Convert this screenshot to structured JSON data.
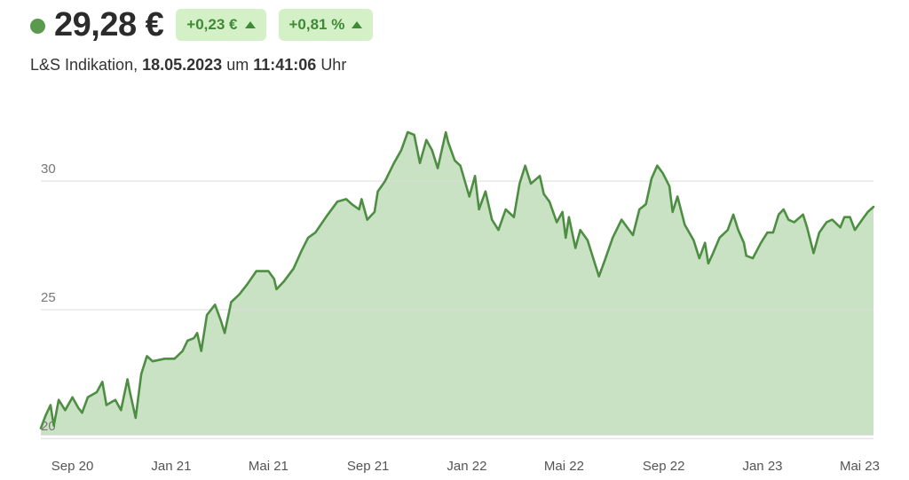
{
  "quote": {
    "price": "29,28 €",
    "change_abs": "+0,23 €",
    "change_pct": "+0,81 %",
    "source": "L&S Indikation,",
    "date": "18.05.2023",
    "um": "um",
    "time": "11:41:06",
    "unit": "Uhr",
    "up_color": "#3f8a35"
  },
  "chart_data": {
    "type": "area",
    "title": "",
    "xlabel": "",
    "ylabel": "",
    "ylim": [
      19.8,
      32.9
    ],
    "y_ticks": [
      {
        "label": "30",
        "value": 30
      },
      {
        "label": "25",
        "value": 25
      },
      {
        "label": "20",
        "value": 20
      }
    ],
    "x_range": [
      "2020-07-24",
      "2023-05-18"
    ],
    "x_ticks": [
      {
        "label": "Sep 20",
        "date": "2020-09-01"
      },
      {
        "label": "Jan 21",
        "date": "2021-01-01"
      },
      {
        "label": "Mai 21",
        "date": "2021-05-01"
      },
      {
        "label": "Sep 21",
        "date": "2021-09-01"
      },
      {
        "label": "Jan 22",
        "date": "2022-01-01"
      },
      {
        "label": "Mai 22",
        "date": "2022-05-01"
      },
      {
        "label": "Sep 22",
        "date": "2022-09-01"
      },
      {
        "label": "Jan 23",
        "date": "2023-01-01"
      },
      {
        "label": "Mai 23",
        "date": "2023-05-01"
      }
    ],
    "grid": true,
    "line_color": "#4e8e43",
    "fill_color": "#c8e2c3",
    "series": [
      {
        "points": [
          [
            "2020-07-24",
            20.4
          ],
          [
            "2020-07-30",
            20.9
          ],
          [
            "2020-08-05",
            21.3
          ],
          [
            "2020-08-09",
            20.5
          ],
          [
            "2020-08-15",
            21.5
          ],
          [
            "2020-08-23",
            21.1
          ],
          [
            "2020-09-01",
            21.6
          ],
          [
            "2020-09-08",
            21.2
          ],
          [
            "2020-09-13",
            21.0
          ],
          [
            "2020-09-20",
            21.6
          ],
          [
            "2020-10-01",
            21.8
          ],
          [
            "2020-10-08",
            22.2
          ],
          [
            "2020-10-13",
            21.3
          ],
          [
            "2020-10-24",
            21.5
          ],
          [
            "2020-10-31",
            21.1
          ],
          [
            "2020-11-08",
            22.3
          ],
          [
            "2020-11-11",
            21.8
          ],
          [
            "2020-11-18",
            20.8
          ],
          [
            "2020-11-25",
            22.5
          ],
          [
            "2020-12-02",
            23.2
          ],
          [
            "2020-12-09",
            23.0
          ],
          [
            "2020-12-24",
            23.1
          ],
          [
            "2021-01-05",
            23.1
          ],
          [
            "2021-01-15",
            23.4
          ],
          [
            "2021-01-21",
            23.8
          ],
          [
            "2021-01-29",
            23.9
          ],
          [
            "2021-02-02",
            24.1
          ],
          [
            "2021-02-07",
            23.4
          ],
          [
            "2021-02-14",
            24.8
          ],
          [
            "2021-02-24",
            25.2
          ],
          [
            "2021-03-03",
            24.6
          ],
          [
            "2021-03-08",
            24.1
          ],
          [
            "2021-03-16",
            25.3
          ],
          [
            "2021-03-26",
            25.6
          ],
          [
            "2021-04-05",
            26.0
          ],
          [
            "2021-04-16",
            26.5
          ],
          [
            "2021-05-01",
            26.5
          ],
          [
            "2021-05-08",
            26.2
          ],
          [
            "2021-05-11",
            25.8
          ],
          [
            "2021-05-20",
            26.1
          ],
          [
            "2021-06-01",
            26.6
          ],
          [
            "2021-06-11",
            27.3
          ],
          [
            "2021-06-19",
            27.8
          ],
          [
            "2021-06-28",
            28.0
          ],
          [
            "2021-07-11",
            28.6
          ],
          [
            "2021-07-25",
            29.2
          ],
          [
            "2021-08-05",
            29.3
          ],
          [
            "2021-08-12",
            29.1
          ],
          [
            "2021-08-21",
            28.9
          ],
          [
            "2021-08-24",
            29.3
          ],
          [
            "2021-08-31",
            28.5
          ],
          [
            "2021-09-09",
            28.8
          ],
          [
            "2021-09-13",
            29.6
          ],
          [
            "2021-09-22",
            30.0
          ],
          [
            "2021-10-03",
            30.7
          ],
          [
            "2021-10-12",
            31.2
          ],
          [
            "2021-10-20",
            31.9
          ],
          [
            "2021-10-28",
            31.8
          ],
          [
            "2021-11-04",
            30.7
          ],
          [
            "2021-11-12",
            31.6
          ],
          [
            "2021-11-19",
            31.2
          ],
          [
            "2021-11-26",
            30.5
          ],
          [
            "2021-12-06",
            31.9
          ],
          [
            "2021-12-09",
            31.5
          ],
          [
            "2021-12-17",
            30.8
          ],
          [
            "2021-12-24",
            30.6
          ],
          [
            "2022-01-04",
            29.4
          ],
          [
            "2022-01-11",
            30.2
          ],
          [
            "2022-01-16",
            28.9
          ],
          [
            "2022-01-24",
            29.6
          ],
          [
            "2022-02-01",
            28.5
          ],
          [
            "2022-02-09",
            28.1
          ],
          [
            "2022-02-18",
            28.9
          ],
          [
            "2022-02-28",
            28.6
          ],
          [
            "2022-03-07",
            29.9
          ],
          [
            "2022-03-14",
            30.6
          ],
          [
            "2022-03-21",
            29.9
          ],
          [
            "2022-04-01",
            30.2
          ],
          [
            "2022-04-06",
            29.5
          ],
          [
            "2022-04-13",
            29.2
          ],
          [
            "2022-04-22",
            28.4
          ],
          [
            "2022-04-29",
            28.8
          ],
          [
            "2022-05-03",
            27.8
          ],
          [
            "2022-05-07",
            28.6
          ],
          [
            "2022-05-15",
            27.4
          ],
          [
            "2022-05-21",
            28.1
          ],
          [
            "2022-05-30",
            27.7
          ],
          [
            "2022-06-06",
            27.0
          ],
          [
            "2022-06-13",
            26.3
          ],
          [
            "2022-06-20",
            26.9
          ],
          [
            "2022-06-30",
            27.8
          ],
          [
            "2022-07-11",
            28.5
          ],
          [
            "2022-07-25",
            27.9
          ],
          [
            "2022-08-02",
            28.9
          ],
          [
            "2022-08-10",
            29.1
          ],
          [
            "2022-08-17",
            30.1
          ],
          [
            "2022-08-24",
            30.6
          ],
          [
            "2022-08-31",
            30.3
          ],
          [
            "2022-09-08",
            29.8
          ],
          [
            "2022-09-12",
            28.8
          ],
          [
            "2022-09-18",
            29.4
          ],
          [
            "2022-09-27",
            28.3
          ],
          [
            "2022-10-08",
            27.7
          ],
          [
            "2022-10-15",
            27.0
          ],
          [
            "2022-10-22",
            27.6
          ],
          [
            "2022-10-26",
            26.8
          ],
          [
            "2022-11-01",
            27.2
          ],
          [
            "2022-11-09",
            27.8
          ],
          [
            "2022-11-19",
            28.1
          ],
          [
            "2022-11-26",
            28.7
          ],
          [
            "2022-12-02",
            28.1
          ],
          [
            "2022-12-09",
            27.6
          ],
          [
            "2022-12-12",
            27.1
          ],
          [
            "2022-12-20",
            27.0
          ],
          [
            "2022-12-30",
            27.6
          ],
          [
            "2023-01-07",
            28.0
          ],
          [
            "2023-01-14",
            28.0
          ],
          [
            "2023-01-21",
            28.7
          ],
          [
            "2023-01-27",
            28.9
          ],
          [
            "2023-02-02",
            28.5
          ],
          [
            "2023-02-09",
            28.4
          ],
          [
            "2023-02-20",
            28.7
          ],
          [
            "2023-02-25",
            28.2
          ],
          [
            "2023-03-05",
            27.2
          ],
          [
            "2023-03-12",
            28.0
          ],
          [
            "2023-03-21",
            28.4
          ],
          [
            "2023-03-28",
            28.5
          ],
          [
            "2023-04-07",
            28.2
          ],
          [
            "2023-04-12",
            28.6
          ],
          [
            "2023-04-19",
            28.6
          ],
          [
            "2023-04-25",
            28.1
          ],
          [
            "2023-05-04",
            28.5
          ],
          [
            "2023-05-11",
            28.8
          ],
          [
            "2023-05-18",
            29.0
          ]
        ]
      }
    ]
  }
}
